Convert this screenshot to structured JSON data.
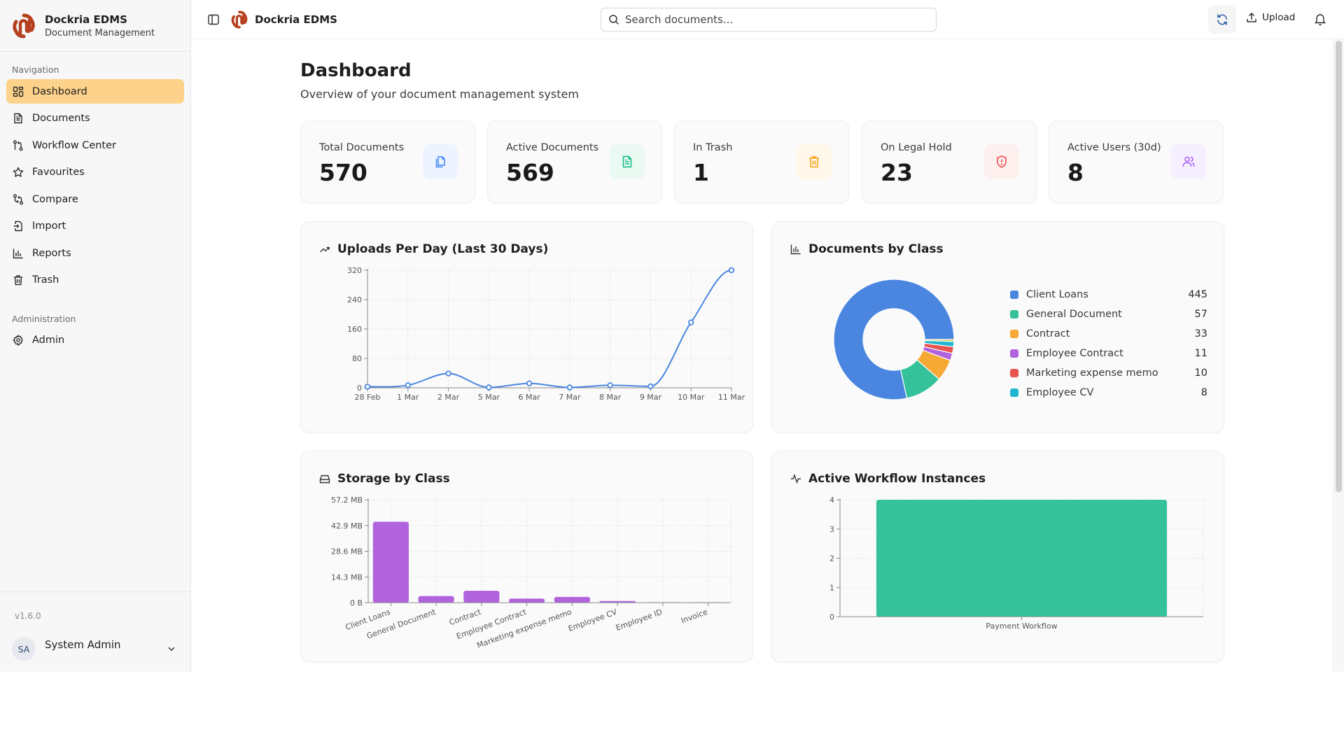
{
  "app": {
    "name": "Dockria EDMS",
    "subtitle": "Document Management",
    "version": "v1.6.0",
    "brand_color": "#b5401f"
  },
  "sidebar": {
    "section_navigation": "Navigation",
    "section_administration": "Administration",
    "nav_items": [
      {
        "label": "Dashboard",
        "icon": "layout-grid-icon",
        "active": true
      },
      {
        "label": "Documents",
        "icon": "file-text-icon",
        "active": false
      },
      {
        "label": "Workflow Center",
        "icon": "git-pull-request-icon",
        "active": false
      },
      {
        "label": "Favourites",
        "icon": "star-icon",
        "active": false
      },
      {
        "label": "Compare",
        "icon": "compare-arrows-icon",
        "active": false
      },
      {
        "label": "Import",
        "icon": "file-import-icon",
        "active": false
      },
      {
        "label": "Reports",
        "icon": "bar-chart-icon",
        "active": false
      },
      {
        "label": "Trash",
        "icon": "trash-icon",
        "active": false
      }
    ],
    "admin_items": [
      {
        "label": "Admin",
        "icon": "gear-icon"
      }
    ],
    "user": {
      "initials": "SA",
      "name": "System Admin"
    }
  },
  "header": {
    "title": "Dockria EDMS",
    "search_placeholder": "Search documents...",
    "search_value": "",
    "upload_label": "Upload"
  },
  "page": {
    "title": "Dashboard",
    "subtitle": "Overview of your document management system"
  },
  "stats": [
    {
      "label": "Total Documents",
      "value": "570",
      "icon": "files-icon",
      "color": "#3b82f6",
      "bg": "#eef4ff"
    },
    {
      "label": "Active Documents",
      "value": "569",
      "icon": "file-text-icon",
      "color": "#10b981",
      "bg": "#eafaf3"
    },
    {
      "label": "In Trash",
      "value": "1",
      "icon": "trash-icon",
      "color": "#f59e0b",
      "bg": "#fff8ea"
    },
    {
      "label": "On Legal Hold",
      "value": "23",
      "icon": "shield-alert-icon",
      "color": "#ef4444",
      "bg": "#fff0f0"
    },
    {
      "label": "Active Users (30d)",
      "value": "8",
      "icon": "users-icon",
      "color": "#a855f7",
      "bg": "#f5efff"
    }
  ],
  "chart_data": [
    {
      "id": "uploads",
      "type": "line",
      "title": "Uploads Per Day (Last 30 Days)",
      "categories": [
        "28 Feb",
        "1 Mar",
        "2 Mar",
        "5 Mar",
        "6 Mar",
        "7 Mar",
        "8 Mar",
        "9 Mar",
        "10 Mar",
        "11 Mar"
      ],
      "values": [
        3,
        7,
        39,
        1,
        12,
        1,
        7,
        4,
        178,
        320
      ],
      "yticks": [
        0,
        80,
        160,
        240,
        320
      ],
      "ylim": [
        0,
        320
      ],
      "xlabel": "",
      "ylabel": "",
      "grid": true,
      "color": "#4a86e0"
    },
    {
      "id": "by_class",
      "type": "pie",
      "title": "Documents by Class",
      "donut": true,
      "slices": [
        {
          "label": "Client Loans",
          "value": 445,
          "color": "#4a86e0",
          "in_legend": true
        },
        {
          "label": "General Document",
          "value": 57,
          "color": "#35c29b",
          "in_legend": true
        },
        {
          "label": "Contract",
          "value": 33,
          "color": "#f6a935",
          "in_legend": true
        },
        {
          "label": "Employee Contract",
          "value": 11,
          "color": "#b162dd",
          "in_legend": true
        },
        {
          "label": "Marketing expense memo",
          "value": 10,
          "color": "#e8524f",
          "in_legend": true
        },
        {
          "label": "Employee CV",
          "value": 8,
          "color": "#21b6cf",
          "in_legend": true
        },
        {
          "label": "",
          "value": 3,
          "color": "#c3c42a",
          "in_legend": false
        }
      ],
      "legend": "right"
    },
    {
      "id": "storage",
      "type": "bar",
      "title": "Storage by Class",
      "categories": [
        "Client Loans",
        "General Document",
        "Contract",
        "Employee Contract",
        "Marketing expense memo",
        "Employee CV",
        "Employee ID",
        "Invoice"
      ],
      "values": [
        45.0,
        3.7,
        6.6,
        2.3,
        3.2,
        0.9,
        0.1,
        0.1
      ],
      "unit": "MB",
      "yticks": [
        "0 B",
        "14.3 MB",
        "28.6 MB",
        "42.9 MB",
        "57.2 MB"
      ],
      "ylim": [
        0,
        57.2
      ],
      "grid": true,
      "color": "#b162dd"
    },
    {
      "id": "workflows",
      "type": "bar",
      "title": "Active Workflow Instances",
      "categories": [
        "Payment Workflow"
      ],
      "values": [
        4
      ],
      "yticks": [
        0,
        1,
        2,
        3,
        4
      ],
      "ylim": [
        0,
        4
      ],
      "grid": true,
      "color": "#35c29b"
    }
  ]
}
